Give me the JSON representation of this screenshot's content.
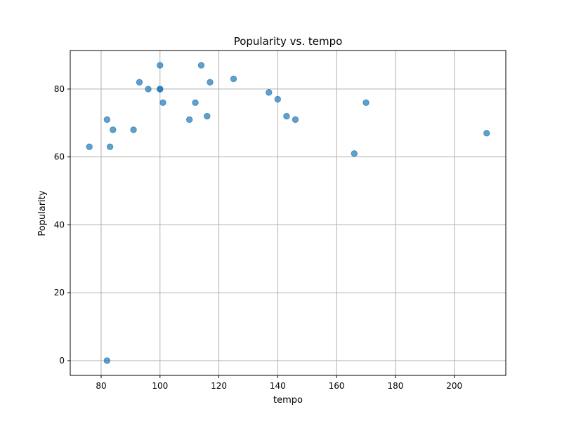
{
  "chart_data": {
    "type": "scatter",
    "title": "Popularity vs. tempo",
    "xlabel": "tempo",
    "ylabel": "Popularity",
    "xlim": [
      69.5,
      217.5
    ],
    "ylim": [
      -4.35,
      91.35
    ],
    "xticks": [
      80,
      100,
      120,
      140,
      160,
      180,
      200
    ],
    "yticks": [
      0,
      20,
      40,
      60,
      80
    ],
    "grid": true,
    "marker_color": "#1f77b4",
    "marker_opacity": 0.7,
    "points": [
      {
        "x": 76,
        "y": 63
      },
      {
        "x": 82,
        "y": 0
      },
      {
        "x": 82,
        "y": 71
      },
      {
        "x": 83,
        "y": 63
      },
      {
        "x": 84,
        "y": 68
      },
      {
        "x": 91,
        "y": 68
      },
      {
        "x": 93,
        "y": 82
      },
      {
        "x": 96,
        "y": 80
      },
      {
        "x": 100,
        "y": 87
      },
      {
        "x": 100,
        "y": 80
      },
      {
        "x": 100,
        "y": 80
      },
      {
        "x": 101,
        "y": 76
      },
      {
        "x": 110,
        "y": 71
      },
      {
        "x": 112,
        "y": 76
      },
      {
        "x": 114,
        "y": 87
      },
      {
        "x": 116,
        "y": 72
      },
      {
        "x": 117,
        "y": 82
      },
      {
        "x": 125,
        "y": 83
      },
      {
        "x": 137,
        "y": 79
      },
      {
        "x": 140,
        "y": 77
      },
      {
        "x": 143,
        "y": 72
      },
      {
        "x": 146,
        "y": 71
      },
      {
        "x": 166,
        "y": 61
      },
      {
        "x": 170,
        "y": 76
      },
      {
        "x": 211,
        "y": 67
      }
    ]
  }
}
